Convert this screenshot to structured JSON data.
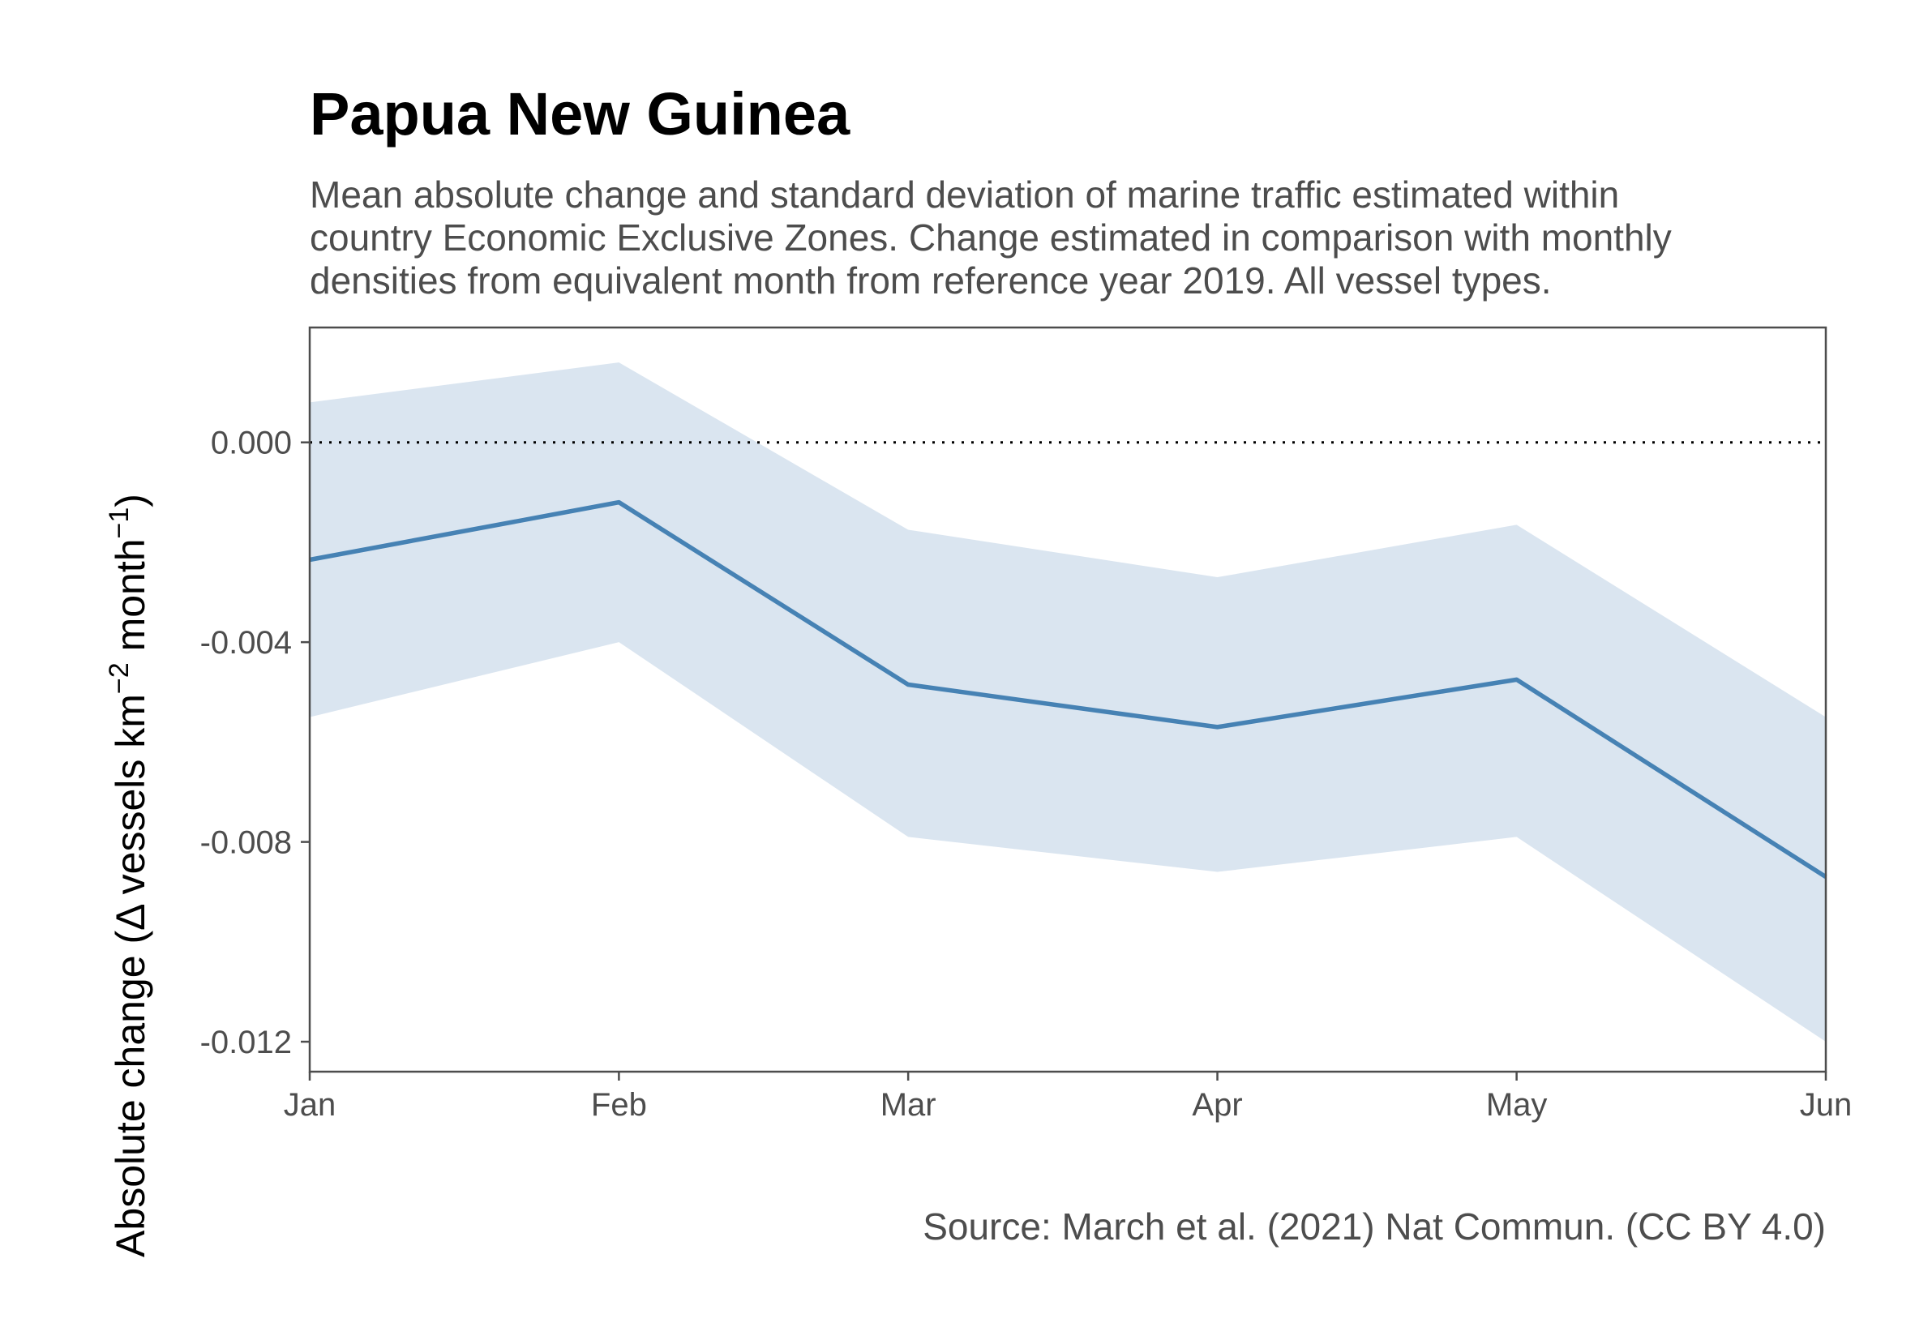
{
  "title": "Papua New Guinea",
  "subtitle_lines": [
    "Mean absolute change and standard deviation of marine traffic estimated within",
    "country Economic Exclusive Zones. Change estimated in comparison with monthly",
    "densities from equivalent month from reference year 2019. All vessel types."
  ],
  "caption": "Source: March et al. (2021) Nat Commun. (CC BY 4.0)",
  "colors": {
    "line": "#4682b4",
    "band": "#dae5f0",
    "reference_line": "#000000",
    "axis": "#4d4d4d"
  },
  "chart_data": {
    "type": "line",
    "categories": [
      "Jan",
      "Feb",
      "Mar",
      "Apr",
      "May",
      "Jun"
    ],
    "x_spacing_days": [
      0,
      31,
      60,
      91,
      121,
      152
    ],
    "series": [
      {
        "mean": [
          -0.00235,
          -0.0012,
          -0.00485,
          -0.0057,
          -0.00475,
          -0.0087
        ],
        "upper": [
          0.0008,
          0.0016,
          -0.00175,
          -0.0027,
          -0.00165,
          -0.0055
        ],
        "lower": [
          -0.0055,
          -0.004,
          -0.0079,
          -0.0086,
          -0.0079,
          -0.012
        ]
      }
    ],
    "reference_line": 0.0,
    "y_ticks": [
      0.0,
      -0.004,
      -0.008,
      -0.012
    ],
    "y_tick_labels": [
      "0.000",
      "-0.004",
      "-0.008",
      "-0.012"
    ],
    "ylim": [
      -0.0126,
      0.0023
    ],
    "ylabel_main": "Absolute change (",
    "ylabel_delta": "Δ",
    "ylabel_units": " vessels km",
    "ylabel_sup1": "−2",
    "ylabel_month": " month",
    "ylabel_sup2": "−1",
    "ylabel_close": ")",
    "xlabel": "",
    "grid": false,
    "legend": "none"
  }
}
